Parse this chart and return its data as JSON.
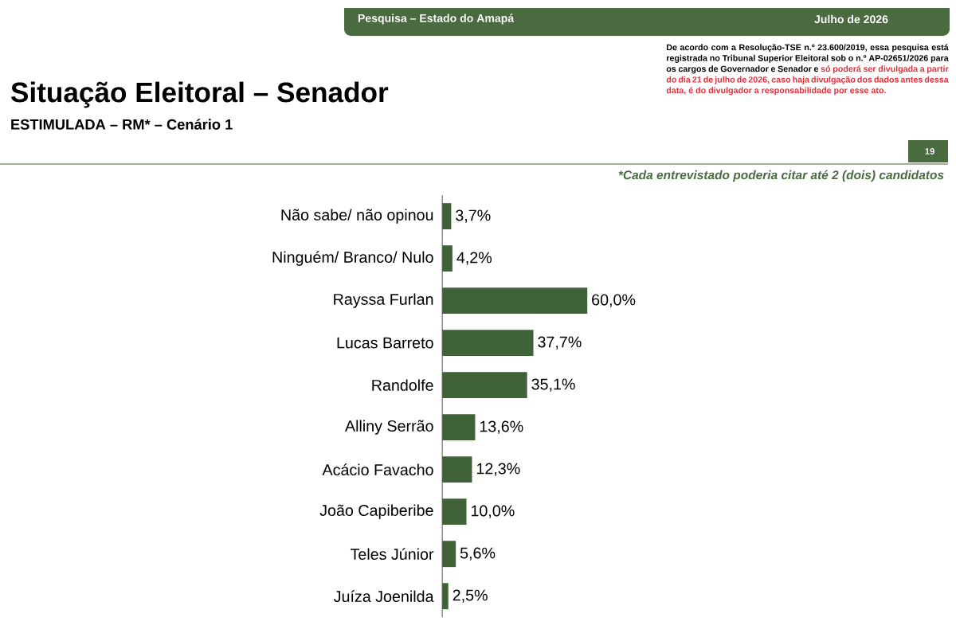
{
  "chart_data": {
    "type": "bar",
    "orientation": "horizontal",
    "title": "Situação Eleitoral – Senador",
    "subtitle": "ESTIMULADA – RM* – Cenário 1",
    "categories": [
      "Não sabe/ não opinou",
      "Ninguém/ Branco/ Nulo",
      "Rayssa Furlan",
      "Lucas Barreto",
      "Randolfe",
      "Alliny Serrão",
      "Acácio Favacho",
      "João Capiberibe",
      "Teles Júnior",
      "Juíza Joenilda"
    ],
    "values": [
      3.7,
      4.2,
      60.0,
      37.7,
      35.1,
      13.6,
      12.3,
      10.0,
      5.6,
      2.5
    ],
    "value_labels": [
      "3,7%",
      "4,2%",
      "60,0%",
      "37,7%",
      "35,1%",
      "13,6%",
      "12,3%",
      "10,0%",
      "5,6%",
      "2,5%"
    ],
    "color": "#3f6239",
    "annotations": [
      "Pesquisa – Estado do Amapá",
      "Julho de 2026",
      "De acordo com a Resolução-TSE n.º 23.600/2019, essa pesquisa está registrada no Tribunal Superior Eleitoral sob o n.º AP-02651/2026 para os cargos de Governador e Senador e",
      "só poderá ser divulgada a partir do dia 21 de julho de 2026, caso haja divulgação dos dados antes dessa data, é do divulgador a responsabilidade por esse ato.",
      "19",
      "*Cada entrevistado poderia citar até 2 (dois) candidatos"
    ]
  }
}
